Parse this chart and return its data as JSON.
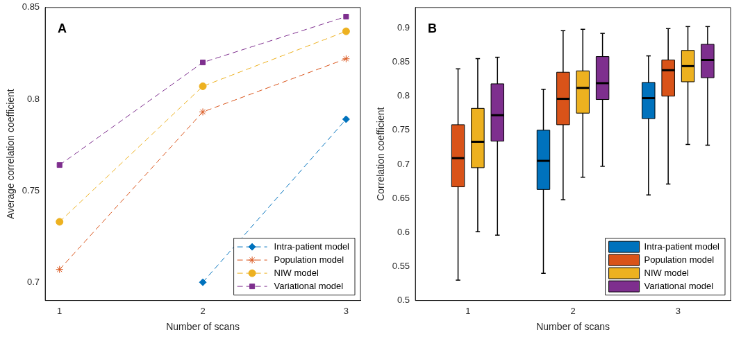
{
  "chart_data": [
    {
      "type": "line",
      "xlabel": "Number of scans",
      "ylabel": "Average correlation coefficient",
      "annotations": [
        "A"
      ],
      "x": [
        1,
        2,
        3
      ],
      "xlim": [
        0.9,
        3.1
      ],
      "xticks": [
        1,
        2,
        3
      ],
      "ylim": [
        0.69,
        0.85
      ],
      "yticks": [
        0.7,
        0.75,
        0.8,
        0.85
      ],
      "grid": false,
      "legend": "bottom right",
      "line_style": "dashed",
      "series": [
        {
          "name": "Intra-patient model",
          "color": "#0072bd",
          "marker": "diamond",
          "values": [
            null,
            0.7,
            0.789
          ]
        },
        {
          "name": "Population model",
          "color": "#d95319",
          "marker": "cross",
          "values": [
            0.707,
            0.793,
            0.822
          ]
        },
        {
          "name": "NIW model",
          "color": "#edb120",
          "marker": "circle",
          "values": [
            0.733,
            0.807,
            0.837
          ]
        },
        {
          "name": "Variational model",
          "color": "#7e2f8e",
          "marker": "square",
          "values": [
            0.764,
            0.82,
            0.845
          ]
        }
      ]
    },
    {
      "type": "box",
      "xlabel": "Number of scans",
      "ylabel": "Correlation coefficient",
      "annotations": [
        "B"
      ],
      "categories": [
        "1",
        "2",
        "3"
      ],
      "ylim": [
        0.5,
        0.93
      ],
      "yticks": [
        0.5,
        0.55,
        0.6,
        0.65,
        0.7,
        0.75,
        0.8,
        0.85,
        0.9
      ],
      "grid": false,
      "legend": "bottom right",
      "series": [
        {
          "name": "Intra-patient model",
          "color": "#0072bd",
          "boxes": [
            null,
            {
              "low": 0.54,
              "q1": 0.663,
              "median": 0.705,
              "q3": 0.75,
              "high": 0.81
            },
            {
              "low": 0.655,
              "q1": 0.767,
              "median": 0.797,
              "q3": 0.82,
              "high": 0.859
            }
          ]
        },
        {
          "name": "Population model",
          "color": "#d95319",
          "boxes": [
            {
              "low": 0.53,
              "q1": 0.667,
              "median": 0.709,
              "q3": 0.758,
              "high": 0.84
            },
            {
              "low": 0.648,
              "q1": 0.758,
              "median": 0.796,
              "q3": 0.835,
              "high": 0.896
            },
            {
              "low": 0.671,
              "q1": 0.8,
              "median": 0.838,
              "q3": 0.853,
              "high": 0.899
            }
          ]
        },
        {
          "name": "NIW model",
          "color": "#edb120",
          "boxes": [
            {
              "low": 0.601,
              "q1": 0.695,
              "median": 0.733,
              "q3": 0.782,
              "high": 0.855
            },
            {
              "low": 0.681,
              "q1": 0.775,
              "median": 0.812,
              "q3": 0.837,
              "high": 0.898
            },
            {
              "low": 0.729,
              "q1": 0.821,
              "median": 0.844,
              "q3": 0.867,
              "high": 0.902
            }
          ]
        },
        {
          "name": "Variational model",
          "color": "#7e2f8e",
          "boxes": [
            {
              "low": 0.596,
              "q1": 0.734,
              "median": 0.772,
              "q3": 0.818,
              "high": 0.857
            },
            {
              "low": 0.697,
              "q1": 0.795,
              "median": 0.819,
              "q3": 0.858,
              "high": 0.892
            },
            {
              "low": 0.728,
              "q1": 0.827,
              "median": 0.853,
              "q3": 0.876,
              "high": 0.902
            }
          ]
        }
      ]
    }
  ]
}
